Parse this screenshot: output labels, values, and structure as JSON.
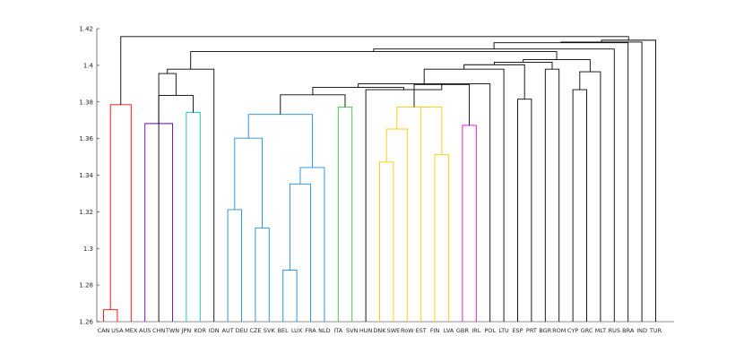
{
  "chart_data": {
    "type": "dendrogram",
    "title": "",
    "xlabel": "",
    "ylabel": "",
    "ylim": [
      1.26,
      1.42
    ],
    "yticks": [
      "1.26",
      "1.28",
      "1.3",
      "1.32",
      "1.34",
      "1.36",
      "1.38",
      "1.4",
      "1.42"
    ],
    "leaves": [
      "CAN",
      "USA",
      "MEX",
      "AUS",
      "CHN",
      "TWN",
      "JPN",
      "KOR",
      "IDN",
      "AUT",
      "DEU",
      "CZE",
      "SVK",
      "BEL",
      "LUX",
      "FRA",
      "NLD",
      "ITA",
      "SVN",
      "HUN",
      "DNK",
      "SWE",
      "RoW",
      "EST",
      "FIN",
      "LVA",
      "GBR",
      "IRL",
      "POL",
      "LTU",
      "ESP",
      "PRT",
      "BGR",
      "ROM",
      "CYP",
      "GRC",
      "MLT",
      "RUS",
      "BRA",
      "IND",
      "TUR"
    ],
    "default_color": "#000000",
    "links": [
      {
        "a": "CAN",
        "b": "USA",
        "h": 1.2665,
        "color": "#ff0000"
      },
      {
        "a": "CAN+USA",
        "b": "MEX",
        "h": 1.3785,
        "color": "#ff0000"
      },
      {
        "a": "TWN",
        "b": "AUS",
        "h": 1.3682,
        "color": "#5b00d6"
      },
      {
        "a": "KOR",
        "b": "JPN",
        "h": 1.3742,
        "color": "#00c8b4"
      },
      {
        "a": "TWN+AUS",
        "b": "KOR+JPN",
        "h": 1.3835
      },
      {
        "a": "CHN",
        "b": "TWN+AUS+KOR+JPN",
        "h": 1.3955
      },
      {
        "a": "AUT",
        "b": "DEU",
        "h": 1.3212,
        "color": "#1c8cdc"
      },
      {
        "a": "CZE",
        "b": "SVK",
        "h": 1.3112,
        "color": "#1c8cdc"
      },
      {
        "a": "AUT+DEU",
        "b": "CZE+SVK",
        "h": 1.3602,
        "color": "#1c8cdc"
      },
      {
        "a": "BEL",
        "b": "LUX",
        "h": 1.2882,
        "color": "#1c8cdc"
      },
      {
        "a": "BEL+LUX",
        "b": "FRA",
        "h": 1.3352,
        "color": "#1c8cdc"
      },
      {
        "a": "BEL+LUX+FRA",
        "b": "NLD",
        "h": 1.3442,
        "color": "#1c8cdc"
      },
      {
        "a": "AUT+DEU+CZE+SVK",
        "b": "BEL+LUX+FRA+NLD",
        "h": 1.3732,
        "color": "#1c8cdc"
      },
      {
        "a": "ITA",
        "b": "SVN",
        "h": 1.3772,
        "color": "#33cc33"
      },
      {
        "a": "DNK",
        "b": "SWE",
        "h": 1.3472,
        "color": "#ffcc00"
      },
      {
        "a": "DNK+SWE",
        "b": "RoW",
        "h": 1.3652,
        "color": "#ffcc00"
      },
      {
        "a": "FIN",
        "b": "LVA",
        "h": 1.3512,
        "color": "#ffcc00"
      },
      {
        "a": "EST",
        "b": "FIN+LVA",
        "h": 1.3772,
        "color": "#ffcc00"
      },
      {
        "a": "DNK+SWE+RoW",
        "b": "EST+FIN+LVA",
        "h": 1.3772,
        "color": "#ffcc00"
      },
      {
        "a": "GBR",
        "b": "IRL",
        "h": 1.3672,
        "color": "#e000e0"
      },
      {
        "a": "DNK+SWE+RoW+EST+FIN+LVA",
        "b": "GBR+IRL",
        "h": 1.3895
      },
      {
        "a": "HUN",
        "b": "DNK+SWE+RoW+EST+FIN+LVA+GBR+IRL",
        "h": 1.3867
      },
      {
        "a": "AUT+DEU+CZE+SVK+BEL+LUX+FRA+NLD",
        "b": "ITA+SVN",
        "h": 1.3839
      },
      {
        "a": "AUT+DEU+CZE+SVK+BEL+LUX+FRA+NLD+ITA+SVN",
        "b": "HUN+DNK+SWE+RoW+EST+FIN+LVA+GBR+IRL",
        "h": 1.3879
      },
      {
        "a": "AUT+DEU+CZE+SVK+BEL+LUX+FRA+NLD+ITA+SVN+HUN+DNK+SWE+RoW+EST+FIN+LVA+GBR+IRL",
        "b": "POL",
        "h": 1.3899
      },
      {
        "a": "AUT+DEU+CZE+SVK+BEL+LUX+FRA+NLD+ITA+SVN+HUN+DNK+SWE+RoW+EST+FIN+LVA+GBR+IRL+POL",
        "b": "LTU",
        "h": 1.3979
      },
      {
        "a": "ESP",
        "b": "PRT",
        "h": 1.3815
      },
      {
        "a": "AUT+DEU+CZE+SVK+BEL+LUX+FRA+NLD+ITA+SVN+HUN+DNK+SWE+RoW+EST+FIN+LVA+GBR+IRL+POL+LTU",
        "b": "ESP+PRT",
        "h": 1.4003
      },
      {
        "a": "BGR",
        "b": "ROM",
        "h": 1.3979
      },
      {
        "a": "AUT+DEU+CZE+SVK+BEL+LUX+FRA+NLD+ITA+SVN+HUN+DNK+SWE+RoW+EST+FIN+LVA+GBR+IRL+POL+LTU+ESP+PRT",
        "b": "BGR+ROM",
        "h": 1.4017
      },
      {
        "a": "CYP",
        "b": "GRC",
        "h": 1.3867
      },
      {
        "a": "CYP+GRC",
        "b": "MLT",
        "h": 1.3965
      },
      {
        "a": "AUT+DEU+CZE+SVK+BEL+LUX+FRA+NLD+ITA+SVN+HUN+DNK+SWE+RoW+EST+FIN+LVA+GBR+IRL+POL+LTU+ESP+PRT+BGR+ROM",
        "b": "CYP+GRC+MLT",
        "h": 1.4031
      },
      {
        "a": "CHN+TWN+AUS+KOR+JPN",
        "b": "IDN",
        "h": 1.3979
      },
      {
        "a": "CHN+TWN+AUS+KOR+JPN+IDN",
        "b": "AUT+DEU+CZE+SVK+BEL+LUX+FRA+NLD+ITA+SVN+HUN+DNK+SWE+RoW+EST+FIN+LVA+GBR+IRL+POL+LTU+ESP+PRT+BGR+ROM+CYP+GRC+MLT",
        "h": 1.4075
      },
      {
        "a": "CHN+TWN+AUS+KOR+JPN+IDN+AUT+DEU+CZE+SVK+BEL+LUX+FRA+NLD+ITA+SVN+HUN+DNK+SWE+RoW+EST+FIN+LVA+GBR+IRL+POL+LTU+ESP+PRT+BGR+ROM+CYP+GRC+MLT",
        "b": "RUS",
        "h": 1.4089
      },
      {
        "a": "CHN+TWN+AUS+KOR+JPN+IDN+AUT+DEU+CZE+SVK+BEL+LUX+FRA+NLD+ITA+SVN+HUN+DNK+SWE+RoW+EST+FIN+LVA+GBR+IRL+POL+LTU+ESP+PRT+BGR+ROM+CYP+GRC+MLT+RUS",
        "b": "BRA",
        "h": 1.4123
      },
      {
        "a": "CHN+TWN+AUS+KOR+JPN+IDN+AUT+DEU+CZE+SVK+BEL+LUX+FRA+NLD+ITA+SVN+HUN+DNK+SWE+RoW+EST+FIN+LVA+GBR+IRL+POL+LTU+ESP+PRT+BGR+ROM+CYP+GRC+MLT+RUS+BRA",
        "b": "IND",
        "h": 1.4127
      },
      {
        "a": "CHN+TWN+AUS+KOR+JPN+IDN+AUT+DEU+CZE+SVK+BEL+LUX+FRA+NLD+ITA+SVN+HUN+DNK+SWE+RoW+EST+FIN+LVA+GBR+IRL+POL+LTU+ESP+PRT+BGR+ROM+CYP+GRC+MLT+RUS+BRA+IND",
        "b": "TUR",
        "h": 1.4137
      },
      {
        "a": "CAN+USA+MEX",
        "b": "CHN+TWN+AUS+KOR+JPN+IDN+AUT+DEU+CZE+SVK+BEL+LUX+FRA+NLD+ITA+SVN+HUN+DNK+SWE+RoW+EST+FIN+LVA+GBR+IRL+POL+LTU+ESP+PRT+BGR+ROM+CYP+GRC+MLT+RUS+BRA+IND+TUR",
        "h": 1.4157
      }
    ]
  }
}
